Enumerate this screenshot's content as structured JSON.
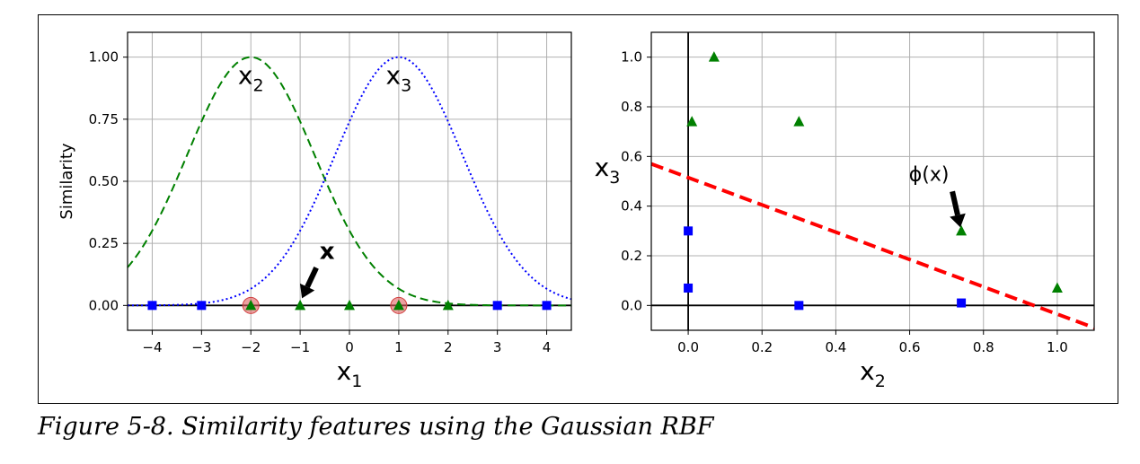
{
  "caption": "Figure 5-8. Similarity features using the Gaussian RBF",
  "chart_data": [
    {
      "type": "line",
      "xlabel": "x1",
      "xlabel_base": "x",
      "xlabel_sub": "1",
      "ylabel": "Similarity",
      "xlim": [
        -4.5,
        4.5
      ],
      "ylim": [
        -0.1,
        1.1
      ],
      "xticks": [
        -4,
        -3,
        -2,
        -1,
        0,
        1,
        2,
        3,
        4
      ],
      "xtick_labels": [
        "−4",
        "−3",
        "−2",
        "−1",
        "0",
        "1",
        "2",
        "3",
        "4"
      ],
      "yticks": [
        0,
        0.25,
        0.5,
        0.75,
        1.0
      ],
      "ytick_labels": [
        "0.00",
        "0.25",
        "0.50",
        "0.75",
        "1.00"
      ],
      "grid": true,
      "gamma": 0.3,
      "curves": [
        {
          "center": -2,
          "label": "x",
          "label_sub": "2",
          "style": "dashed",
          "color": "#008000"
        },
        {
          "center": 1,
          "label": "x",
          "label_sub": "3",
          "style": "dotted",
          "color": "#0000ff"
        }
      ],
      "squares": {
        "x": [
          -4,
          -3,
          3,
          4
        ],
        "color": "#0000ff"
      },
      "triangles": {
        "x": [
          -2,
          -1,
          0,
          1,
          2
        ],
        "color": "#008000"
      },
      "landmarks": {
        "x": [
          -2,
          1
        ],
        "color": "#e06060"
      },
      "annotation": {
        "text": "x",
        "x": -1,
        "y": 0
      }
    },
    {
      "type": "scatter",
      "xlabel": "x2",
      "xlabel_base": "x",
      "xlabel_sub": "2",
      "ylabel": "x3",
      "ylabel_base": "x",
      "ylabel_sub": "3",
      "xlim": [
        -0.1,
        1.1
      ],
      "ylim": [
        -0.1,
        1.1
      ],
      "xticks": [
        0,
        0.2,
        0.4,
        0.6,
        0.8,
        1.0
      ],
      "xtick_labels": [
        "0.0",
        "0.2",
        "0.4",
        "0.6",
        "0.8",
        "1.0"
      ],
      "yticks": [
        0,
        0.2,
        0.4,
        0.6,
        0.8,
        1.0
      ],
      "ytick_labels": [
        "0.0",
        "0.2",
        "0.4",
        "0.6",
        "0.8",
        "1.0"
      ],
      "grid": true,
      "squares": {
        "x": [
          0.0,
          0.0,
          0.3,
          0.74
        ],
        "y": [
          0.3,
          0.07,
          0.0,
          0.01
        ],
        "color": "#0000ff"
      },
      "triangles": {
        "x": [
          0.01,
          0.07,
          0.3,
          0.74,
          1.0
        ],
        "y": [
          0.74,
          1.0,
          0.74,
          0.3,
          0.07
        ],
        "color": "#008000"
      },
      "decision_line": {
        "x": [
          -0.1,
          1.1
        ],
        "y": [
          0.57,
          -0.09
        ],
        "style": "dashed",
        "color": "#ff0000"
      },
      "annotation": {
        "text": "ϕ(x)",
        "x": 0.74,
        "y": 0.3
      }
    }
  ]
}
